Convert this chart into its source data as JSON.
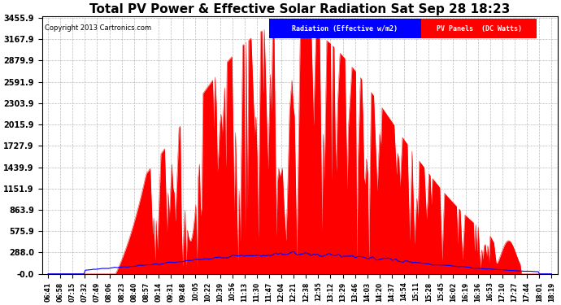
{
  "title": "Total PV Power & Effective Solar Radiation Sat Sep 28 18:23",
  "copyright": "Copyright 2013 Cartronics.com",
  "legend_radiation": "Radiation (Effective w/m2)",
  "legend_pv": "PV Panels  (DC Watts)",
  "radiation_color": "#0000ff",
  "pv_color": "#ff0000",
  "legend_radiation_bg": "#0000ff",
  "legend_pv_bg": "#ff0000",
  "bg_color": "#ffffff",
  "plot_bg_color": "#ffffff",
  "grid_color": "#aaaaaa",
  "ymax": 3455.9,
  "ymin": 0.0,
  "yticks": [
    0.0,
    288.0,
    575.9,
    863.9,
    1151.9,
    1439.9,
    1727.9,
    2015.9,
    2303.9,
    2591.9,
    2879.9,
    3167.9,
    3455.9
  ],
  "ytick_labels": [
    "-0.0",
    "288.0",
    "575.9",
    "863.9",
    "1151.9",
    "1439.9",
    "1727.9",
    "2015.9",
    "2303.9",
    "2591.9",
    "2879.9",
    "3167.9",
    "3455.9"
  ],
  "xtick_labels": [
    "06:41",
    "06:58",
    "07:15",
    "07:32",
    "07:49",
    "08:06",
    "08:23",
    "08:40",
    "08:57",
    "09:14",
    "09:31",
    "09:48",
    "10:05",
    "10:22",
    "10:39",
    "10:56",
    "11:13",
    "11:30",
    "11:47",
    "12:04",
    "12:21",
    "12:38",
    "12:55",
    "13:12",
    "13:29",
    "13:46",
    "14:03",
    "14:20",
    "14:37",
    "14:54",
    "15:11",
    "15:28",
    "15:45",
    "16:02",
    "16:19",
    "16:36",
    "16:53",
    "17:10",
    "17:27",
    "17:44",
    "18:01",
    "18:19"
  ],
  "title_fontsize": 11,
  "tick_fontsize": 7,
  "xtick_fontsize": 5.5
}
